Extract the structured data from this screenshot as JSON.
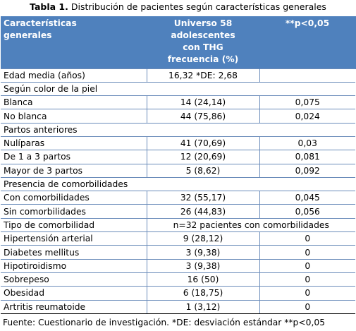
{
  "caption": {
    "label": "Tabla 1.",
    "text": "Distribución de pacientes según características generales"
  },
  "header": {
    "col1": "Características generales",
    "col2": "Universo 58 adolescentes con THG frecuencia (%)",
    "col3": "**p<0,05"
  },
  "rows": [
    {
      "label": "Edad media (años)",
      "value": "16,32 *DE: 2,68",
      "p": ""
    },
    {
      "label": "Según color de la piel",
      "section": true
    },
    {
      "label": "Blanca",
      "value": "14 (24,14)",
      "p": "0,075"
    },
    {
      "label": "No blanca",
      "value": "44 (75,86)",
      "p": "0,024"
    },
    {
      "label": "Partos anteriores",
      "section": true
    },
    {
      "label": "Nulíparas",
      "value": "41 (70,69)",
      "p": "0,03"
    },
    {
      "label": "De 1 a 3 partos",
      "value": "12 (20,69)",
      "p": "0,081"
    },
    {
      "label": "Mayor de 3 partos",
      "value": "5 (8,62)",
      "p": "0,092"
    },
    {
      "label": "Presencia de comorbilidades",
      "section": true
    },
    {
      "label": "Con comorbilidades",
      "value": "32 (55,17)",
      "p": "0,045"
    },
    {
      "label": "Sin comorbilidades",
      "value": "26 (44,83)",
      "p": "0,056"
    },
    {
      "label": "Tipo de comorbilidad",
      "merged": "n=32 pacientes con comorbilidades"
    },
    {
      "label": "Hipertensión arterial",
      "value": "9 (28,12)",
      "p": "0"
    },
    {
      "label": "Diabetes mellitus",
      "value": "3 (9,38)",
      "p": "0"
    },
    {
      "label": "Hipotiroidismo",
      "value": "3 (9,38)",
      "p": "0"
    },
    {
      "label": "Sobrepeso",
      "value": "16 (50)",
      "p": "0"
    },
    {
      "label": "Obesidad",
      "value": "6 (18,75)",
      "p": "0"
    },
    {
      "label": "Artritis reumatoide",
      "value": "1 (3,12)",
      "p": "0"
    }
  ],
  "source": "Fuente: Cuestionario de investigación.  *DE: desviación estándar **p<0,05"
}
